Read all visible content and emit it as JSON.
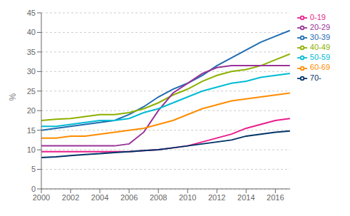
{
  "chart_data": {
    "type": "line",
    "ylabel": "%",
    "x": [
      2000,
      2001,
      2002,
      2003,
      2004,
      2005,
      2006,
      2007,
      2008,
      2009,
      2010,
      2011,
      2012,
      2013,
      2014,
      2015,
      2016,
      2017
    ],
    "xlim": [
      2000,
      2017
    ],
    "xticks": [
      2000,
      2002,
      2004,
      2006,
      2008,
      2010,
      2012,
      2014,
      2016
    ],
    "ylim": [
      0,
      45
    ],
    "yticks": [
      0,
      5,
      10,
      15,
      20,
      25,
      30,
      35,
      40,
      45
    ],
    "grid": true,
    "legend": "right",
    "series": [
      {
        "name": "30-39",
        "color": "#1f6cb0",
        "values": [
          15.0,
          15.5,
          16.0,
          16.5,
          17.0,
          17.5,
          19.0,
          21.0,
          23.5,
          25.5,
          27.0,
          29.0,
          31.5,
          33.5,
          35.5,
          37.5,
          39.0,
          40.5
        ]
      },
      {
        "name": "40-49",
        "color": "#8db000",
        "values": [
          17.5,
          17.8,
          18.0,
          18.5,
          19.0,
          19.0,
          19.5,
          20.5,
          22.0,
          24.0,
          25.5,
          27.5,
          29.0,
          30.0,
          30.5,
          31.5,
          33.0,
          34.5
        ]
      },
      {
        "name": "20-29",
        "color": "#993399",
        "values": [
          11.0,
          11.0,
          11.0,
          11.0,
          11.0,
          11.0,
          11.5,
          14.5,
          20.0,
          24.5,
          27.0,
          29.5,
          31.0,
          31.5,
          31.5,
          31.5,
          31.5,
          31.5
        ]
      },
      {
        "name": "50-59",
        "color": "#00bcd4",
        "values": [
          16.0,
          16.0,
          16.5,
          17.0,
          17.5,
          17.5,
          18.0,
          19.5,
          20.5,
          22.0,
          23.5,
          25.0,
          26.0,
          27.0,
          27.5,
          28.5,
          29.0,
          29.5
        ]
      },
      {
        "name": "60-69",
        "color": "#ff8c00",
        "values": [
          13.0,
          13.0,
          13.5,
          13.5,
          14.0,
          14.5,
          15.0,
          15.5,
          16.5,
          17.5,
          19.0,
          20.5,
          21.5,
          22.5,
          23.0,
          23.5,
          24.0,
          24.5
        ]
      },
      {
        "name": "0-19",
        "color": "#e91e8c",
        "values": [
          9.5,
          9.5,
          9.5,
          9.5,
          9.5,
          9.5,
          9.5,
          9.8,
          10.0,
          10.5,
          11.0,
          12.0,
          13.0,
          14.0,
          15.5,
          16.5,
          17.5,
          18.0
        ]
      },
      {
        "name": "70-",
        "color": "#003366",
        "values": [
          8.0,
          8.2,
          8.5,
          8.8,
          9.0,
          9.3,
          9.5,
          9.8,
          10.0,
          10.5,
          11.0,
          11.5,
          12.0,
          12.5,
          13.5,
          14.0,
          14.5,
          14.8
        ]
      }
    ]
  }
}
